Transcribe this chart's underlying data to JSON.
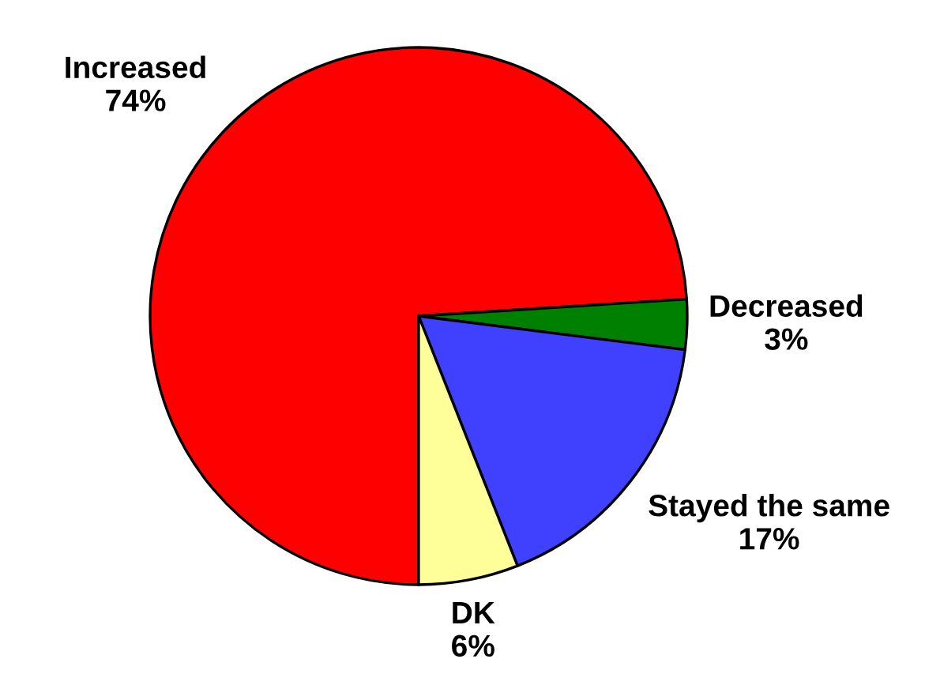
{
  "chart_data": {
    "type": "pie",
    "categories": [
      "Increased",
      "Decreased",
      "Stayed the same",
      "DK"
    ],
    "values": [
      74,
      3,
      17,
      6
    ],
    "colors": [
      "#ff0000",
      "#008000",
      "#4040ff",
      "#ffff99"
    ],
    "value_labels": [
      "74%",
      "3%",
      "17%",
      "6%"
    ]
  }
}
